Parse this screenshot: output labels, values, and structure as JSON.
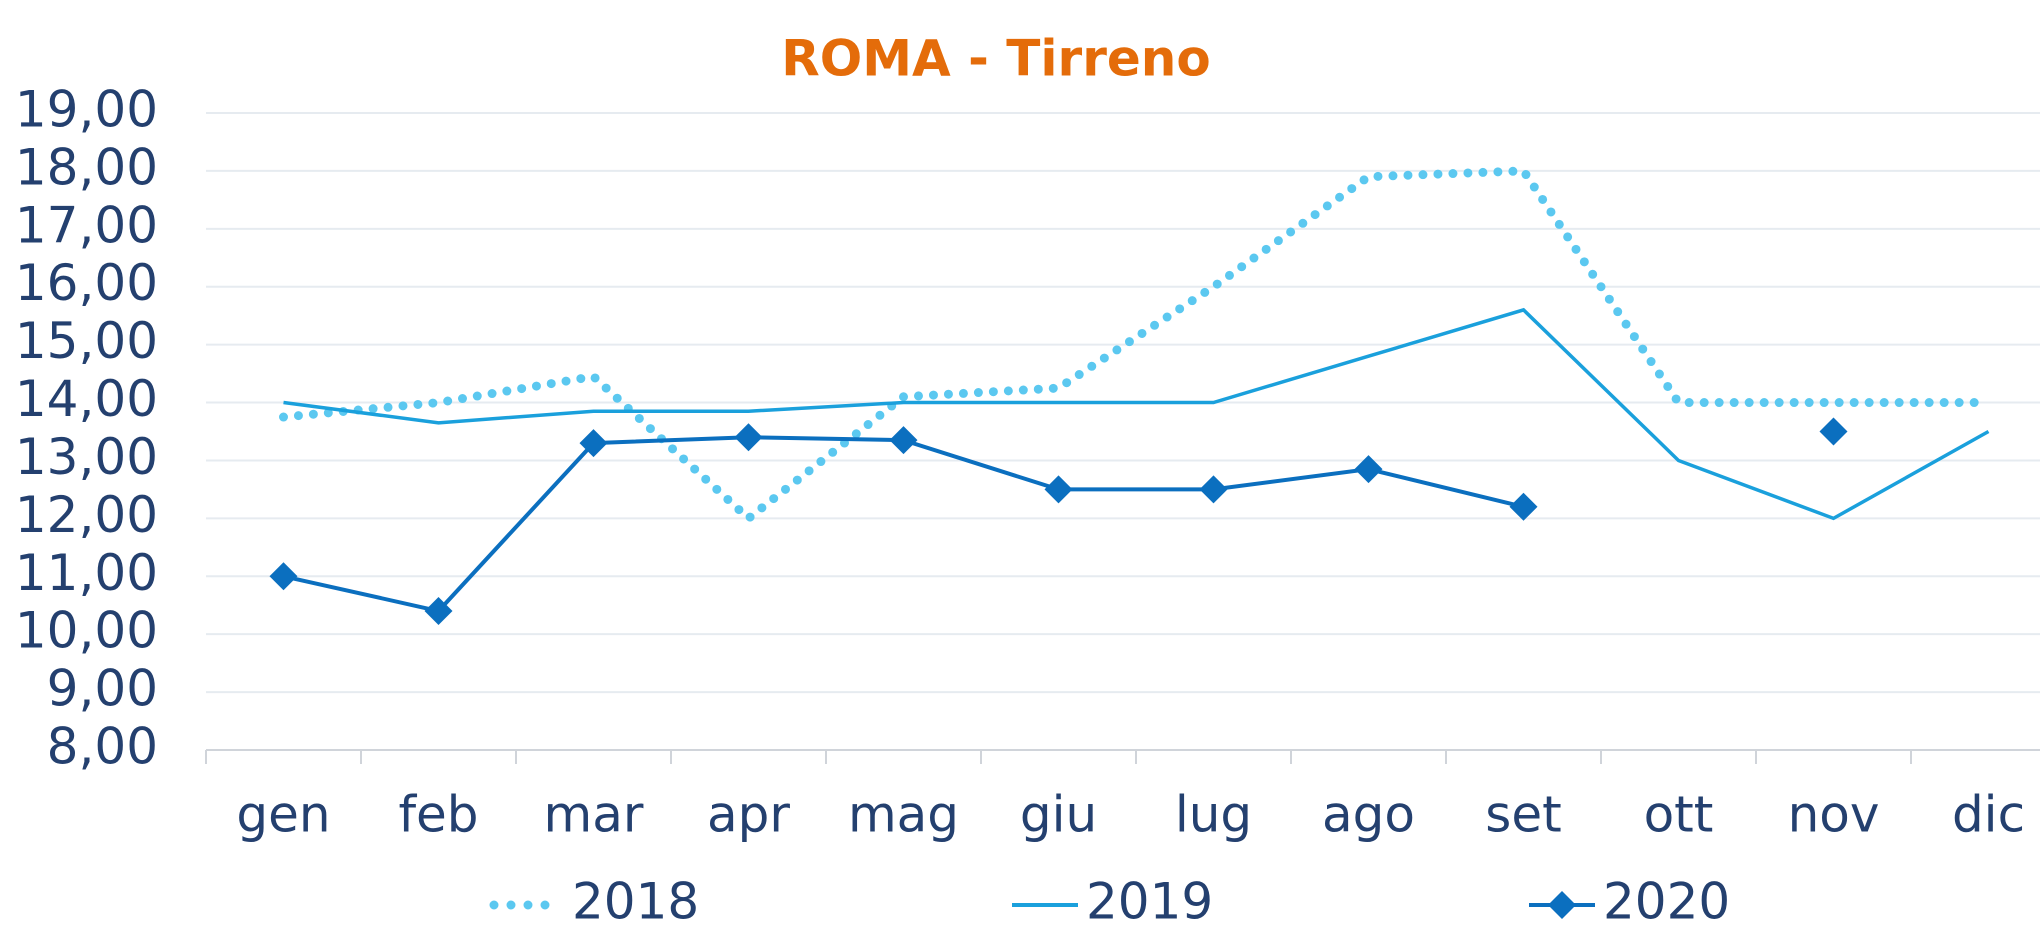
{
  "chart_data": {
    "type": "line",
    "title": "ROMA - Tirreno",
    "categories": [
      "gen",
      "feb",
      "mar",
      "apr",
      "mag",
      "giu",
      "lug",
      "ago",
      "set",
      "ott",
      "nov",
      "dic"
    ],
    "series": [
      {
        "name": "2018",
        "color": "#5bc8f0",
        "style": "dotted",
        "values": [
          13.75,
          14.0,
          14.45,
          12.0,
          14.1,
          14.25,
          16.0,
          17.9,
          18.0,
          14.0,
          14.0,
          14.0
        ]
      },
      {
        "name": "2019",
        "color": "#1aa0dc",
        "style": "solid",
        "values": [
          14.0,
          13.65,
          13.85,
          13.85,
          14.0,
          14.0,
          14.0,
          14.8,
          15.6,
          13.0,
          12.0,
          13.5
        ]
      },
      {
        "name": "2020",
        "color": "#0b6fbf",
        "style": "diamond",
        "values": [
          11.0,
          10.4,
          13.3,
          13.4,
          13.35,
          12.5,
          12.5,
          12.85,
          12.2,
          null,
          13.5,
          null
        ]
      }
    ],
    "ylim": [
      8,
      19
    ],
    "yticks": [
      {
        "value": 8,
        "label": "8,00"
      },
      {
        "value": 9,
        "label": "9,00"
      },
      {
        "value": 10,
        "label": "10,00"
      },
      {
        "value": 11,
        "label": "11,00"
      },
      {
        "value": 12,
        "label": "12,00"
      },
      {
        "value": 13,
        "label": "13,00"
      },
      {
        "value": 14,
        "label": "14,00"
      },
      {
        "value": 15,
        "label": "15,00"
      },
      {
        "value": 16,
        "label": "16,00"
      },
      {
        "value": 17,
        "label": "17,00"
      },
      {
        "value": 18,
        "label": "18,00"
      },
      {
        "value": 19,
        "label": "19,00"
      }
    ],
    "grid": true,
    "legend": "bottom"
  }
}
